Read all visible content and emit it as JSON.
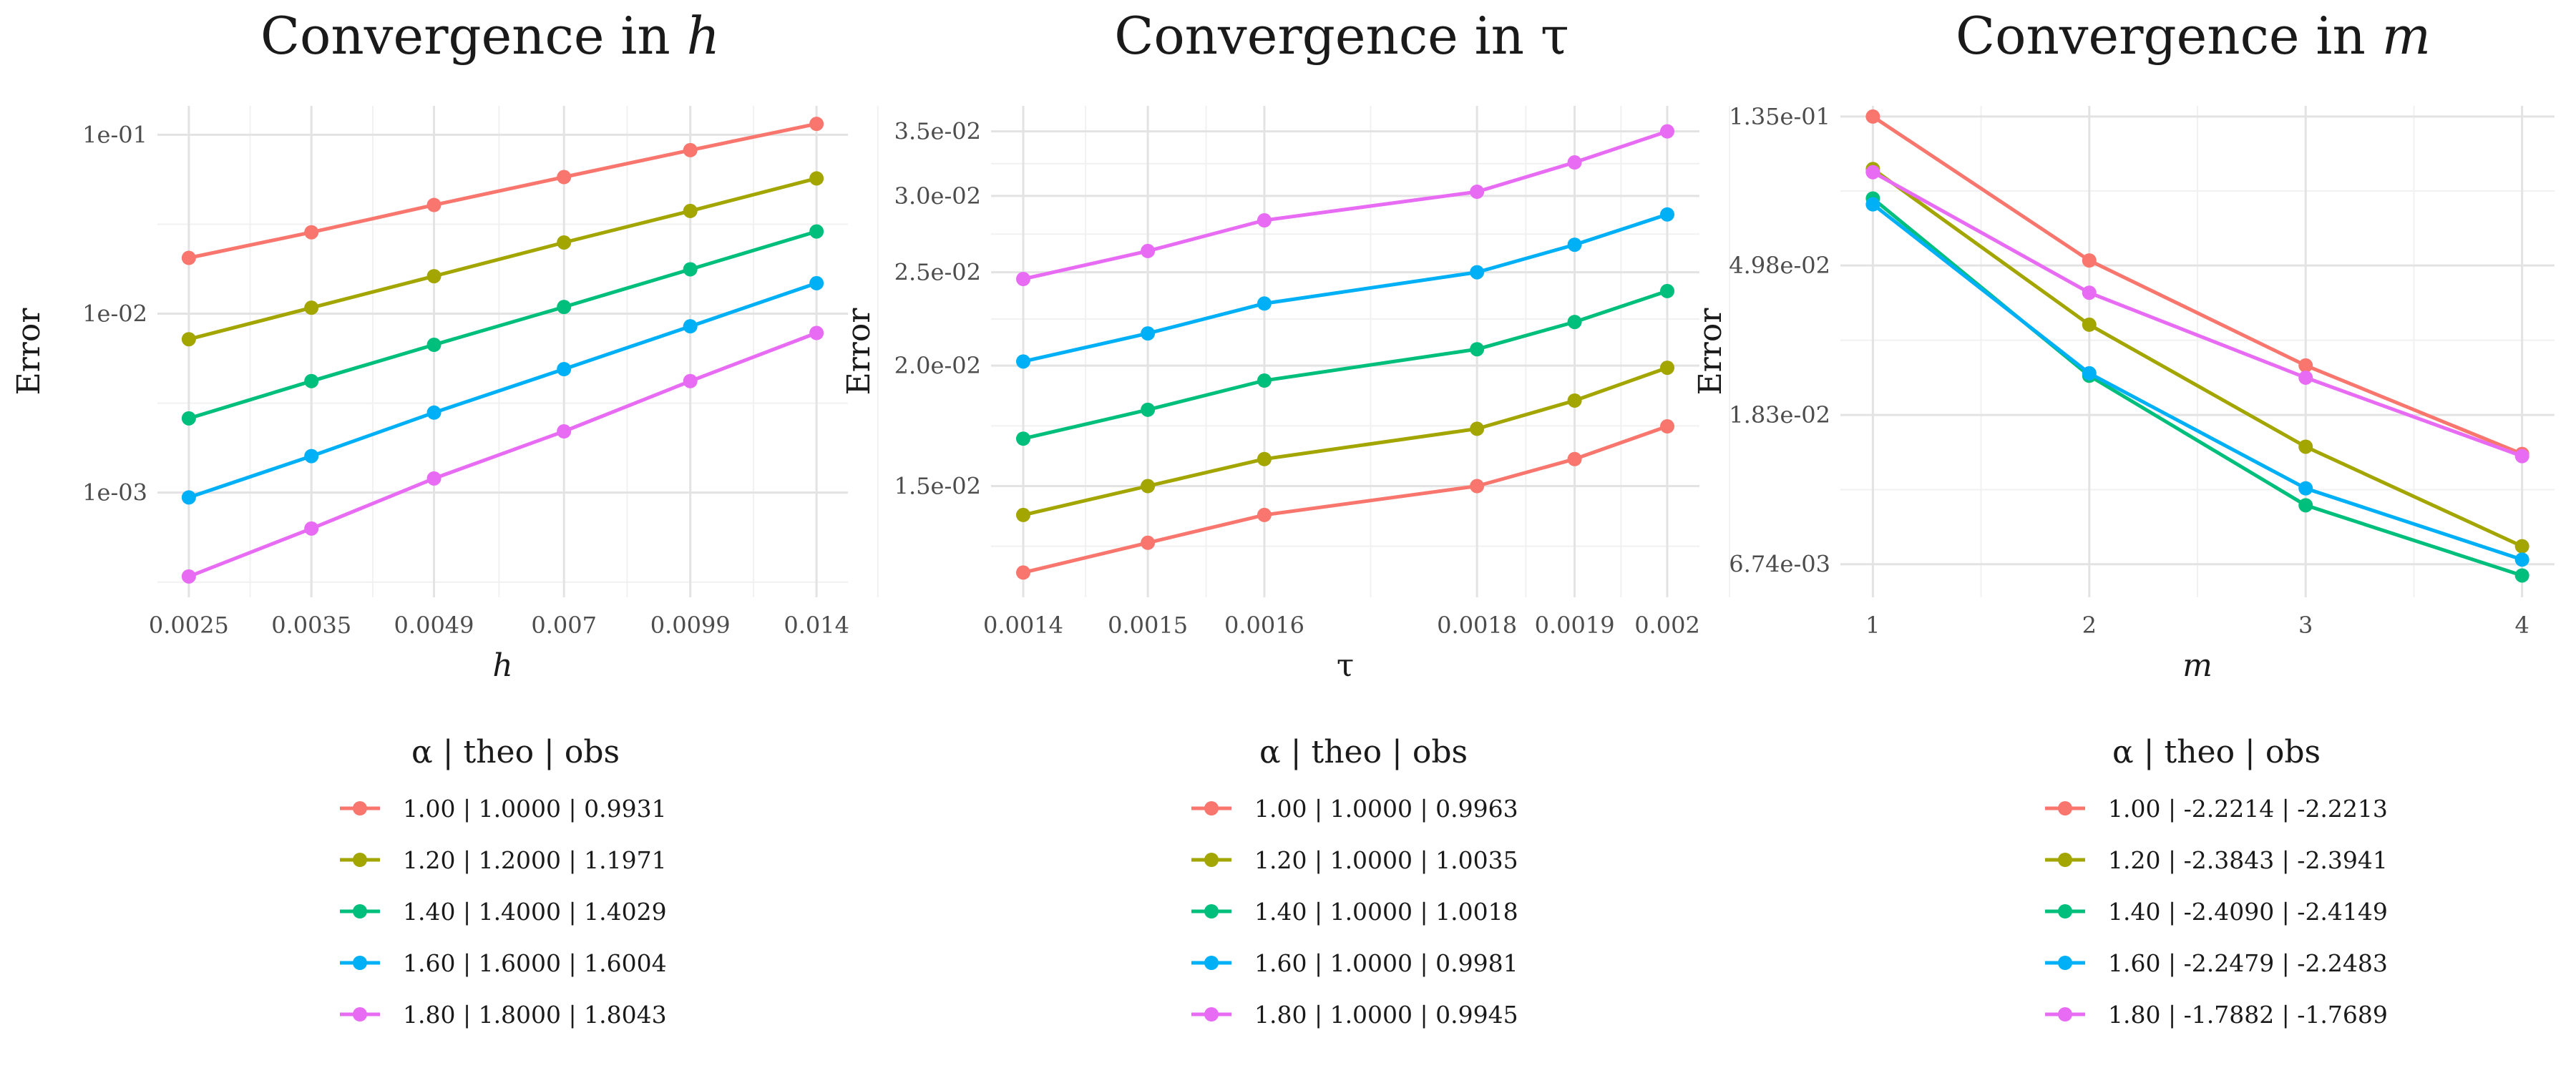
{
  "chart_data": [
    {
      "type": "line",
      "title": "Convergence in h",
      "title_prefix": "Convergence in ",
      "title_var": "h",
      "xlabel": "h",
      "ylabel": "Error",
      "x_scale": "log",
      "y_scale": "log",
      "grid": true,
      "legend_position": "bottom",
      "x": [
        0.0025,
        0.0035,
        0.0049,
        0.007,
        0.0099,
        0.014
      ],
      "x_tick_labels": [
        "0.0025",
        "0.0035",
        "0.0049",
        "0.007",
        "0.0099",
        "0.014"
      ],
      "y_ticks": [
        0.001,
        0.01,
        0.1
      ],
      "y_tick_labels": [
        "1e-03",
        "1e-02",
        "1e-01"
      ],
      "ylim": [
        0.00026,
        0.145
      ],
      "legend_header": "α  | theo  | obs",
      "series": [
        {
          "name": "1.00 | 1.0000 | 0.9931",
          "color": "#F8766D",
          "values": [
            0.0205,
            0.0285,
            0.0405,
            0.058,
            0.082,
            0.115
          ]
        },
        {
          "name": "1.20 | 1.2000 | 1.1971",
          "color": "#A3A500",
          "values": [
            0.0072,
            0.0108,
            0.0162,
            0.025,
            0.0375,
            0.057
          ]
        },
        {
          "name": "1.40 | 1.4000 | 1.4029",
          "color": "#00BF7D",
          "values": [
            0.0026,
            0.0042,
            0.0067,
            0.0109,
            0.0177,
            0.0288
          ]
        },
        {
          "name": "1.60 | 1.6000 | 1.6004",
          "color": "#00B0F6",
          "values": [
            0.00094,
            0.0016,
            0.0028,
            0.0049,
            0.0085,
            0.0148
          ]
        },
        {
          "name": "1.80 | 1.8000 | 1.8043",
          "color": "#E76BF3",
          "values": [
            0.00034,
            0.00063,
            0.0012,
            0.0022,
            0.0042,
            0.0078
          ]
        }
      ]
    },
    {
      "type": "line",
      "title": "Convergence in τ",
      "title_prefix": "Convergence in ",
      "title_var": "τ",
      "xlabel": "τ",
      "ylabel": "Error",
      "x_scale": "log",
      "y_scale": "log",
      "grid": true,
      "legend_position": "bottom",
      "x": [
        0.0014,
        0.0015,
        0.0016,
        0.0018,
        0.0019,
        0.002
      ],
      "x_tick_labels": [
        "0.0014",
        "0.0015",
        "0.0016",
        "0.0018",
        "0.0019",
        "0.002"
      ],
      "y_ticks": [
        0.015,
        0.02,
        0.025,
        0.03,
        0.035
      ],
      "y_tick_labels": [
        "1.5e-02",
        "2.0e-02",
        "2.5e-02",
        "3.0e-02",
        "3.5e-02"
      ],
      "ylim": [
        0.0115,
        0.0372
      ],
      "legend_header": "α  | theo  | obs",
      "series": [
        {
          "name": "1.00 | 1.0000 | 0.9963",
          "color": "#F8766D",
          "values": [
            0.0122,
            0.0131,
            0.014,
            0.015,
            0.016,
            0.0173
          ]
        },
        {
          "name": "1.20 | 1.0000 | 1.0035",
          "color": "#A3A500",
          "values": [
            0.014,
            0.015,
            0.016,
            0.0172,
            0.0184,
            0.0199
          ]
        },
        {
          "name": "1.40 | 1.0000 | 1.0018",
          "color": "#00BF7D",
          "values": [
            0.0168,
            0.018,
            0.0193,
            0.0208,
            0.0222,
            0.0239
          ]
        },
        {
          "name": "1.60 | 1.0000 | 0.9981",
          "color": "#00B0F6",
          "values": [
            0.0202,
            0.0216,
            0.0232,
            0.025,
            0.0267,
            0.0287
          ]
        },
        {
          "name": "1.80 | 1.0000 | 0.9945",
          "color": "#E76BF3",
          "values": [
            0.0246,
            0.0263,
            0.0283,
            0.0303,
            0.0325,
            0.035
          ]
        }
      ]
    },
    {
      "type": "line",
      "title": "Convergence in m",
      "title_prefix": "Convergence in ",
      "title_var": "m",
      "xlabel": "m",
      "ylabel": "Error",
      "x_scale": "linear",
      "y_scale": "log",
      "grid": true,
      "legend_position": "bottom",
      "x": [
        1,
        2,
        3,
        4
      ],
      "x_tick_labels": [
        "1",
        "2",
        "3",
        "4"
      ],
      "y_ticks": [
        0.00674,
        0.0183,
        0.0498,
        0.135
      ],
      "y_tick_labels": [
        "6.74e-03",
        "1.83e-02",
        "4.98e-02",
        "1.35e-01"
      ],
      "ylim": [
        0.0054,
        0.145
      ],
      "legend_header": "α  | theo  | obs",
      "series": [
        {
          "name": "1.00 | -2.2214 | -2.2213",
          "color": "#F8766D",
          "values": [
            0.135,
            0.0515,
            0.0255,
            0.0141
          ]
        },
        {
          "name": "1.20 | -2.3843 | -2.3941",
          "color": "#A3A500",
          "values": [
            0.095,
            0.0335,
            0.0148,
            0.0076
          ]
        },
        {
          "name": "1.40 | -2.4090 | -2.4149",
          "color": "#00BF7D",
          "values": [
            0.078,
            0.0238,
            0.01,
            0.00625
          ]
        },
        {
          "name": "1.60 | -2.2479 | -2.2483",
          "color": "#00B0F6",
          "values": [
            0.075,
            0.0242,
            0.0112,
            0.00695
          ]
        },
        {
          "name": "1.80 | -1.7882 | -1.7689",
          "color": "#E76BF3",
          "values": [
            0.093,
            0.0415,
            0.0235,
            0.0139
          ]
        }
      ]
    }
  ]
}
